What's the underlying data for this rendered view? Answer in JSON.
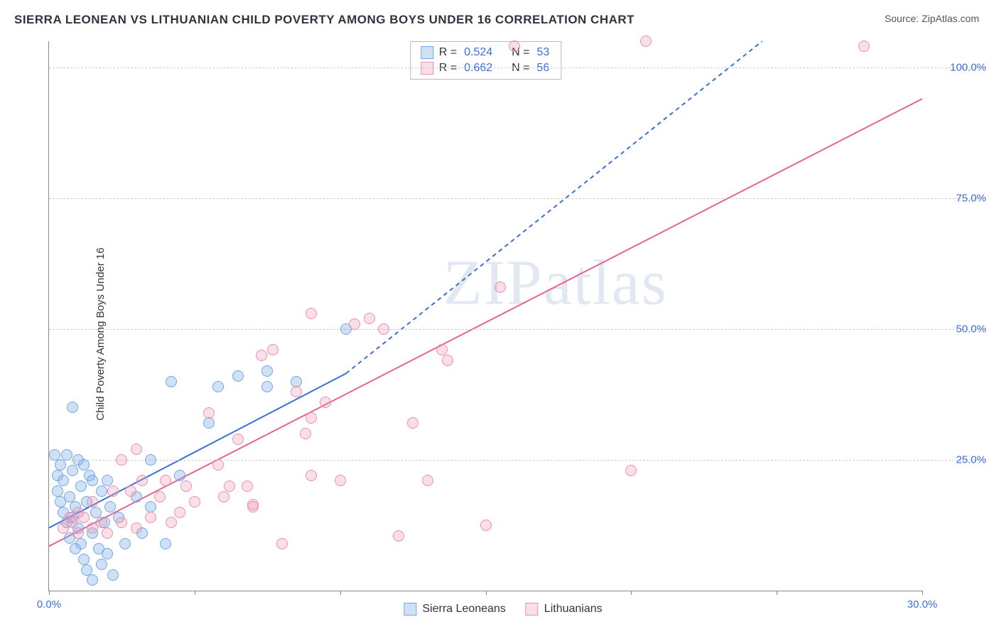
{
  "title": "SIERRA LEONEAN VS LITHUANIAN CHILD POVERTY AMONG BOYS UNDER 16 CORRELATION CHART",
  "source_label": "Source: ",
  "source_value": "ZipAtlas.com",
  "watermark": "ZIPatlas",
  "chart": {
    "type": "scatter",
    "ylabel": "Child Poverty Among Boys Under 16",
    "xlim": [
      0,
      30
    ],
    "ylim": [
      0,
      105
    ],
    "xtick_positions": [
      0,
      5,
      10,
      15,
      20,
      25,
      30
    ],
    "xtick_labels": {
      "0": "0.0%",
      "30": "30.0%"
    },
    "ytick_positions": [
      25,
      50,
      75,
      100
    ],
    "ytick_labels": {
      "25": "25.0%",
      "50": "50.0%",
      "75": "75.0%",
      "100": "100.0%"
    },
    "ytick_color": "#3b6fd6",
    "xtick_color_left": "#3b6fd6",
    "xtick_color_right": "#3b6fd6",
    "grid_color": "#cccccc",
    "background_color": "#ffffff",
    "marker_radius": 8,
    "marker_border_width": 1,
    "series": [
      {
        "name": "Sierra Leoneans",
        "fill": "rgba(120,170,230,0.35)",
        "stroke": "#6fa8e8",
        "R": "0.524",
        "N": "53",
        "trend": {
          "x1": 0,
          "y1": 12,
          "x2": 10.2,
          "y2": 41.5,
          "dash_x2": 24.5,
          "dash_y2": 105,
          "color": "#3b6fd6",
          "width": 2
        },
        "points": [
          [
            0.2,
            26
          ],
          [
            0.3,
            22
          ],
          [
            0.3,
            19
          ],
          [
            0.4,
            24
          ],
          [
            0.4,
            17
          ],
          [
            0.5,
            21
          ],
          [
            0.5,
            15
          ],
          [
            0.6,
            26
          ],
          [
            0.6,
            13
          ],
          [
            0.7,
            18
          ],
          [
            0.7,
            10
          ],
          [
            0.8,
            23
          ],
          [
            0.8,
            14
          ],
          [
            0.9,
            16
          ],
          [
            0.9,
            8
          ],
          [
            1.0,
            25
          ],
          [
            1.0,
            12
          ],
          [
            1.1,
            20
          ],
          [
            1.1,
            9
          ],
          [
            1.2,
            24
          ],
          [
            1.2,
            6
          ],
          [
            1.3,
            17
          ],
          [
            1.3,
            4
          ],
          [
            1.4,
            22
          ],
          [
            1.5,
            11
          ],
          [
            1.5,
            2
          ],
          [
            1.6,
            15
          ],
          [
            1.7,
            8
          ],
          [
            1.8,
            19
          ],
          [
            1.8,
            5
          ],
          [
            1.9,
            13
          ],
          [
            2.0,
            7
          ],
          [
            2.1,
            16
          ],
          [
            2.2,
            3
          ],
          [
            2.4,
            14
          ],
          [
            2.6,
            9
          ],
          [
            3.0,
            18
          ],
          [
            3.2,
            11
          ],
          [
            3.5,
            16
          ],
          [
            4.0,
            9
          ],
          [
            0.8,
            35
          ],
          [
            4.2,
            40
          ],
          [
            5.5,
            32
          ],
          [
            5.8,
            39
          ],
          [
            6.5,
            41
          ],
          [
            7.5,
            39
          ],
          [
            7.5,
            42
          ],
          [
            8.5,
            40
          ],
          [
            10.2,
            50
          ],
          [
            1.5,
            21
          ],
          [
            2.0,
            21
          ],
          [
            3.5,
            25
          ],
          [
            4.5,
            22
          ]
        ]
      },
      {
        "name": "Lithuanians",
        "fill": "rgba(240,150,180,0.30)",
        "stroke": "#ec8fb0",
        "R": "0.662",
        "N": "56",
        "trend": {
          "x1": 0,
          "y1": 8.5,
          "x2": 30,
          "y2": 94,
          "color": "#e86394",
          "width": 2
        },
        "points": [
          [
            0.5,
            12
          ],
          [
            0.8,
            13
          ],
          [
            1.0,
            11
          ],
          [
            1.2,
            14
          ],
          [
            1.5,
            12
          ],
          [
            1.8,
            13
          ],
          [
            2.0,
            11
          ],
          [
            2.2,
            19
          ],
          [
            2.5,
            13
          ],
          [
            2.8,
            19
          ],
          [
            3.0,
            12
          ],
          [
            3.2,
            21
          ],
          [
            3.5,
            14
          ],
          [
            3.8,
            18
          ],
          [
            4.0,
            21
          ],
          [
            4.5,
            15
          ],
          [
            4.7,
            20
          ],
          [
            5.0,
            17
          ],
          [
            5.5,
            34
          ],
          [
            6.0,
            18
          ],
          [
            6.2,
            20
          ],
          [
            6.5,
            29
          ],
          [
            7.0,
            16.5
          ],
          [
            7.0,
            16
          ],
          [
            7.3,
            45
          ],
          [
            7.7,
            46
          ],
          [
            8.0,
            9
          ],
          [
            8.5,
            38
          ],
          [
            8.8,
            30
          ],
          [
            9.0,
            22
          ],
          [
            9.0,
            33
          ],
          [
            9.0,
            53
          ],
          [
            9.5,
            36
          ],
          [
            10.0,
            21
          ],
          [
            10.5,
            51
          ],
          [
            11.0,
            52
          ],
          [
            11.5,
            50
          ],
          [
            12.0,
            10.5
          ],
          [
            12.5,
            32
          ],
          [
            13.0,
            21
          ],
          [
            13.5,
            46
          ],
          [
            13.7,
            44
          ],
          [
            15.0,
            12.5
          ],
          [
            15.5,
            58
          ],
          [
            16.0,
            104
          ],
          [
            20.0,
            23
          ],
          [
            20.5,
            105
          ],
          [
            28.0,
            104
          ],
          [
            2.5,
            25
          ],
          [
            3.0,
            27
          ],
          [
            1.0,
            15
          ],
          [
            1.5,
            17
          ],
          [
            0.7,
            14
          ],
          [
            4.2,
            13
          ],
          [
            5.8,
            24
          ],
          [
            6.8,
            20
          ]
        ]
      }
    ],
    "correlation_legend": {
      "R_label": "R =",
      "N_label": "N ="
    }
  }
}
